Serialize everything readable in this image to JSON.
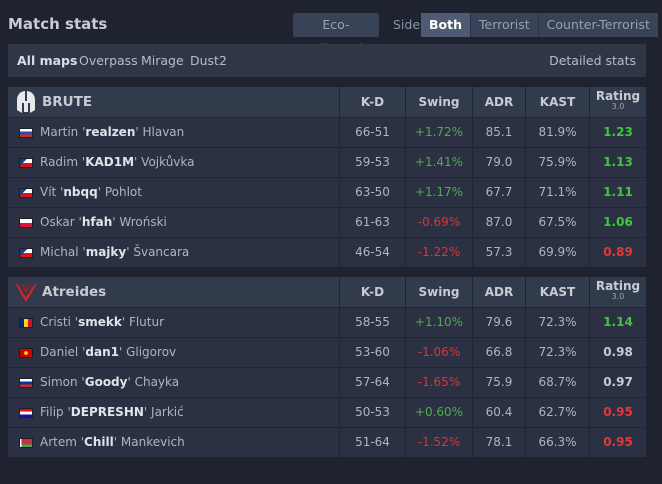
{
  "title": "Match stats",
  "eco_button": "Eco-adjusted",
  "side": {
    "label": "Side",
    "options": [
      "Both",
      "Terrorist",
      "Counter-Terrorist"
    ],
    "active": "Both"
  },
  "maps": {
    "items": [
      "All maps",
      "Overpass",
      "Mirage",
      "Dust2"
    ],
    "active": "All maps",
    "detailed_label": "Detailed stats"
  },
  "columns": {
    "kd": "K-D",
    "swing": "Swing",
    "adr": "ADR",
    "kast": "KAST",
    "rating": "Rating",
    "rating_sub": "3.0"
  },
  "colors": {
    "positive": "#49b04a",
    "negative": "#d3373c",
    "rating_good": "#3ec83e",
    "rating_bad": "#e2373b",
    "rating_mid": "#c7cbd3"
  },
  "teams": [
    {
      "name": "BRUTE",
      "logo_icon": "spartan-helmet-icon",
      "players": [
        {
          "flag": "SK",
          "first": "Martin",
          "nick": "realzen",
          "last": "Hlavan",
          "kd": "66-51",
          "swing": "+1.72%",
          "adr": "85.1",
          "kast": "81.9%",
          "rating": "1.23"
        },
        {
          "flag": "CZ",
          "first": "Radim",
          "nick": "KAD1M",
          "last": "Vojkůvka",
          "kd": "59-53",
          "swing": "+1.41%",
          "adr": "79.0",
          "kast": "75.9%",
          "rating": "1.13"
        },
        {
          "flag": "CZ",
          "first": "Vít",
          "nick": "nbqq",
          "last": "Pohlot",
          "kd": "63-50",
          "swing": "+1.17%",
          "adr": "67.7",
          "kast": "71.1%",
          "rating": "1.11"
        },
        {
          "flag": "PL",
          "first": "Oskar",
          "nick": "hfah",
          "last": "Wroński",
          "kd": "61-63",
          "swing": "-0.69%",
          "adr": "87.0",
          "kast": "67.5%",
          "rating": "1.06"
        },
        {
          "flag": "CZ",
          "first": "Michal",
          "nick": "majky",
          "last": "Švancara",
          "kd": "46-54",
          "swing": "-1.22%",
          "adr": "57.3",
          "kast": "69.9%",
          "rating": "0.89"
        }
      ]
    },
    {
      "name": "Atreides",
      "logo_icon": "atreides-hawk-icon",
      "players": [
        {
          "flag": "RO",
          "first": "Cristi",
          "nick": "smekk",
          "last": "Flutur",
          "kd": "58-55",
          "swing": "+1.10%",
          "adr": "79.6",
          "kast": "72.3%",
          "rating": "1.14"
        },
        {
          "flag": "MK",
          "first": "Daniel",
          "nick": "dan1",
          "last": "Gligorov",
          "kd": "53-60",
          "swing": "-1.06%",
          "adr": "66.8",
          "kast": "72.3%",
          "rating": "0.98"
        },
        {
          "flag": "RU",
          "first": "Simon",
          "nick": "Goody",
          "last": "Chayka",
          "kd": "57-64",
          "swing": "-1.65%",
          "adr": "75.9",
          "kast": "68.7%",
          "rating": "0.97"
        },
        {
          "flag": "HR",
          "first": "Filip",
          "nick": "DEPRESHN",
          "last": "Jarkić",
          "kd": "50-53",
          "swing": "+0.60%",
          "adr": "60.4",
          "kast": "62.7%",
          "rating": "0.95"
        },
        {
          "flag": "BY",
          "first": "Artem",
          "nick": "Chill",
          "last": "Mankevich",
          "kd": "51-64",
          "swing": "-1.52%",
          "adr": "78.1",
          "kast": "66.3%",
          "rating": "0.95"
        }
      ]
    }
  ]
}
